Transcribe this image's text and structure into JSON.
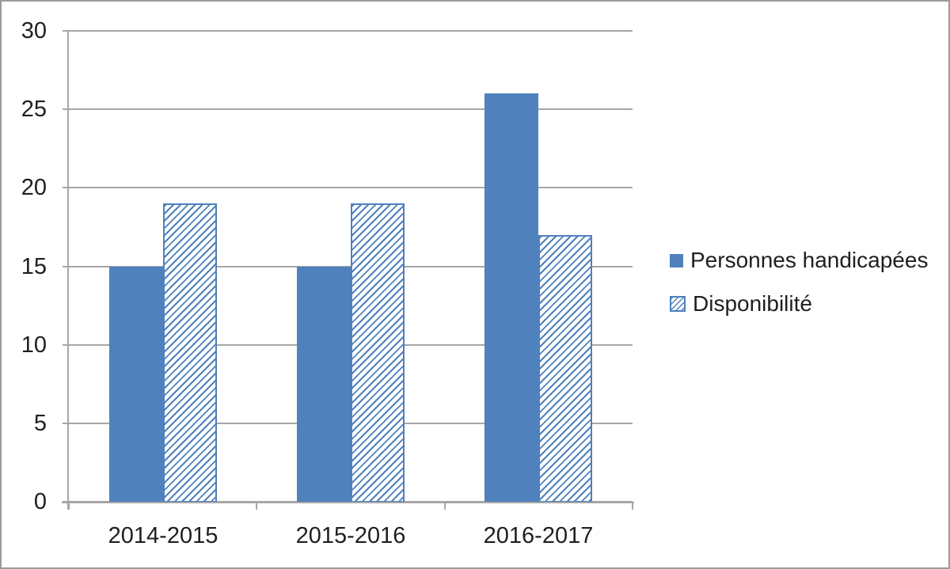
{
  "chart_data": {
    "type": "bar",
    "title": "",
    "categories": [
      "2014-2015",
      "2015-2016",
      "2016-2017"
    ],
    "series": [
      {
        "name": "Personnes handicapées",
        "fill": "solid",
        "values": [
          15,
          15,
          26
        ]
      },
      {
        "name": "Disponibilité",
        "fill": "hatched-diagonal",
        "values": [
          19,
          19,
          17
        ]
      }
    ],
    "xlabel": "",
    "ylabel": "",
    "ylim": [
      0,
      30
    ],
    "yticks": [
      0,
      5,
      10,
      15,
      20,
      25,
      30
    ],
    "grid": "horizontal",
    "legend_position": "right"
  },
  "legend": {
    "items": [
      {
        "label": "Personnes handicapées",
        "marker": "solid-square"
      },
      {
        "label": "Disponibilité",
        "marker": "hatched-square"
      }
    ]
  },
  "colors": {
    "accent": "#4f81bd",
    "hatch_background": "#ffffff",
    "gridline": "#a6a6a6",
    "axis": "#a6a6a6",
    "text": "#1f1f1f",
    "frame_border": "#9b9b9b",
    "background": "#ffffff"
  }
}
